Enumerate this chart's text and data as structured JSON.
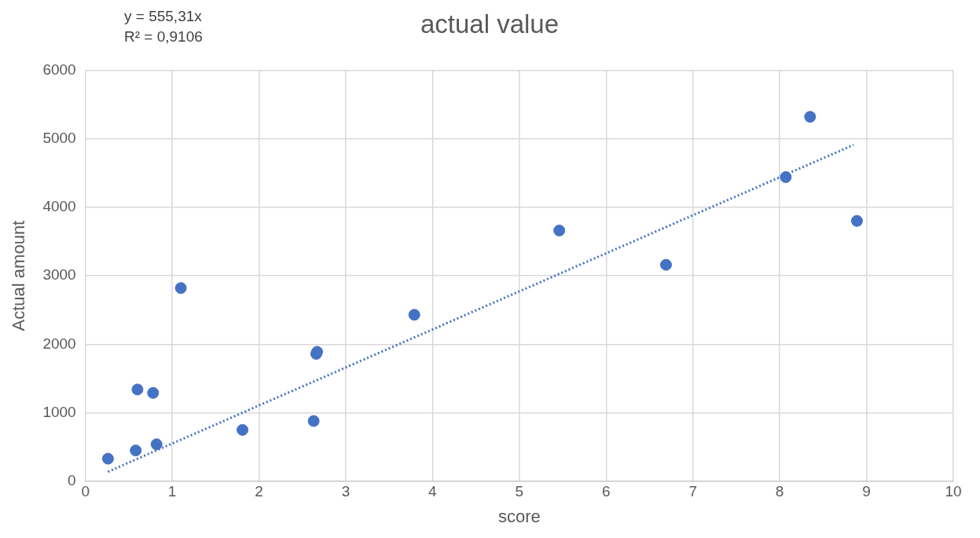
{
  "chart_data": {
    "type": "scatter",
    "title": "actual value",
    "xlabel": "score",
    "ylabel": "Actual amount",
    "annotations": [
      "y = 555,31x",
      "R² = 0,9106"
    ],
    "xlim": [
      0,
      10
    ],
    "xticks": [
      0,
      1,
      2,
      3,
      4,
      5,
      6,
      7,
      8,
      9,
      10
    ],
    "ylim": [
      0,
      6000
    ],
    "yticks": [
      0,
      1000,
      2000,
      3000,
      4000,
      5000,
      6000
    ],
    "grid": true,
    "legend": false,
    "marker": "circle",
    "series": [
      {
        "type": "scatter",
        "color": "#4472c4",
        "x": [
          0.26,
          0.58,
          0.6,
          0.78,
          0.82,
          1.1,
          1.81,
          2.63,
          2.66,
          2.67,
          3.79,
          5.46,
          6.69,
          8.07,
          8.35,
          8.89
        ],
        "values": [
          330,
          450,
          1340,
          1290,
          540,
          2820,
          750,
          880,
          1860,
          1890,
          2430,
          3660,
          3160,
          4440,
          5320,
          3800
        ]
      },
      {
        "type": "line",
        "color": "#4472c4",
        "line_style": "dotted",
        "marker": "none",
        "x": [
          0.26,
          8.85
        ],
        "values": [
          140,
          4910
        ]
      }
    ]
  }
}
